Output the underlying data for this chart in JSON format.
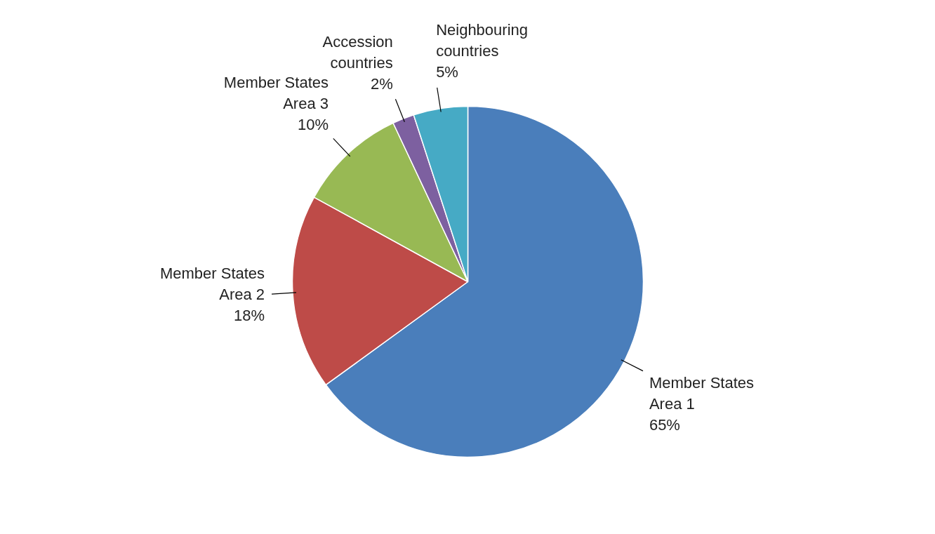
{
  "chart_data": {
    "type": "pie",
    "categories": [
      "Member States Area 1",
      "Member States Area 2",
      "Member States Area 3",
      "Accession countries",
      "Neighbouring countries"
    ],
    "values": [
      65,
      18,
      10,
      2,
      5
    ],
    "value_labels": [
      "65%",
      "18%",
      "10%",
      "2%",
      "5%"
    ],
    "colors": [
      "#4a7ebb",
      "#be4b48",
      "#98b954",
      "#7d60a0",
      "#46aac5"
    ]
  }
}
